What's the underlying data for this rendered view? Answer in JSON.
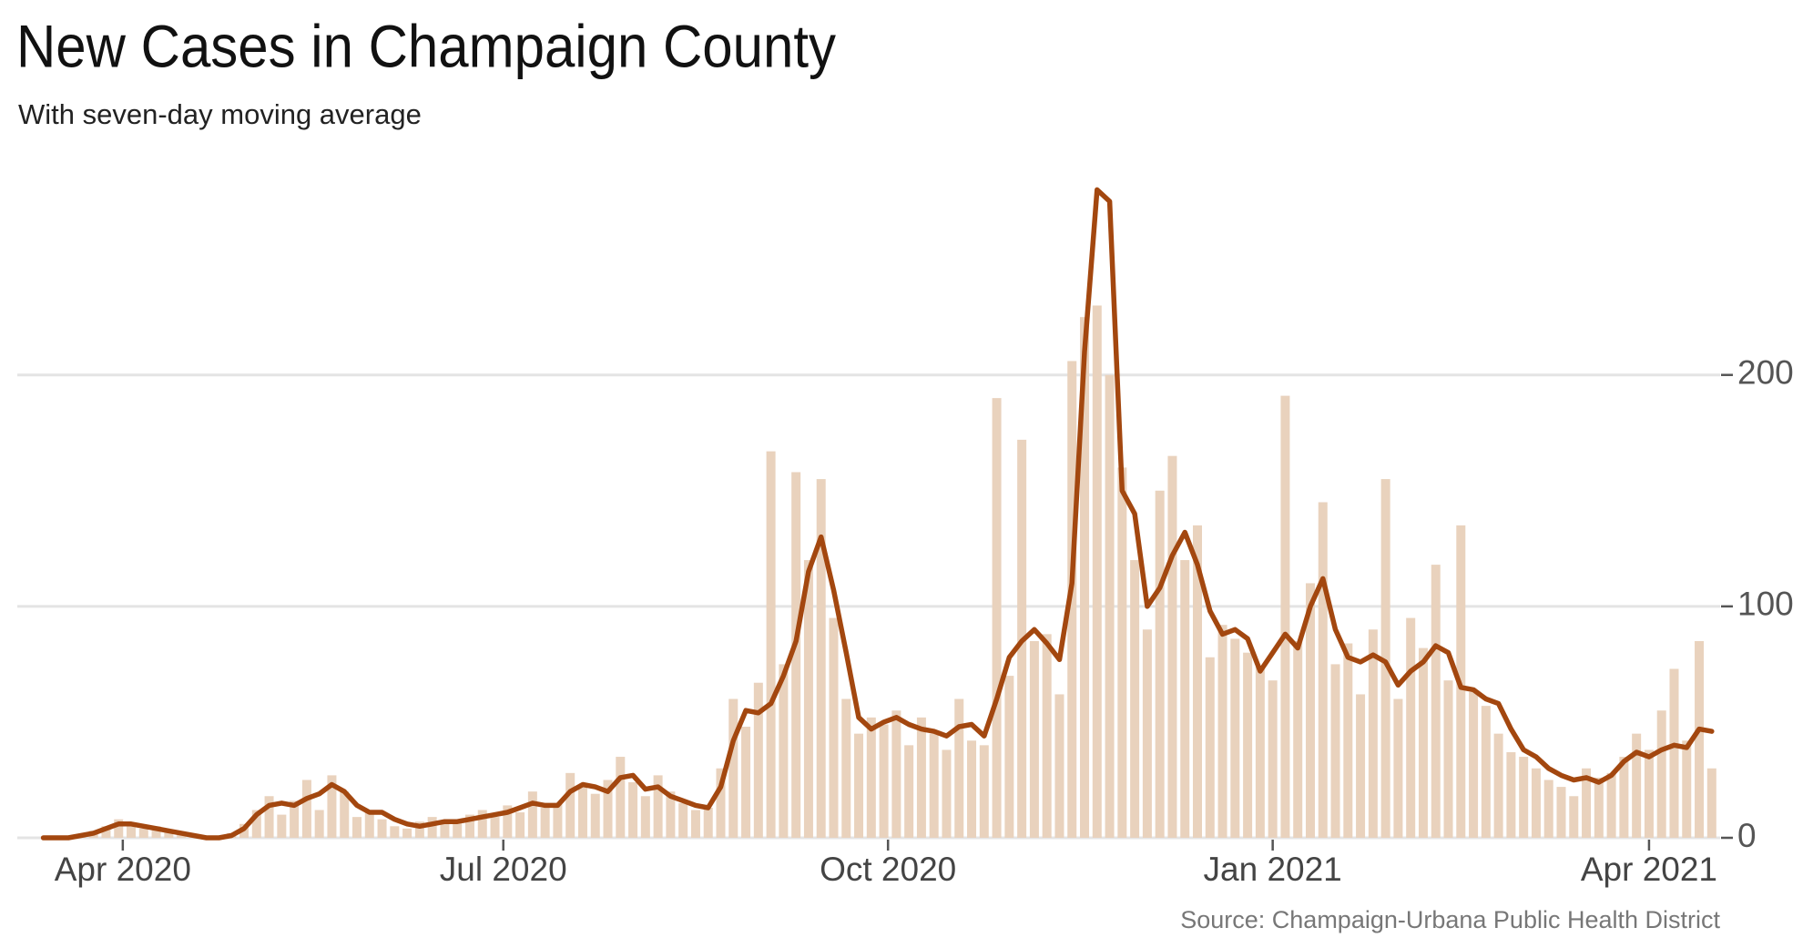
{
  "chart_data": {
    "type": "combo",
    "title": "New Cases in Champaign County",
    "subtitle": "With seven-day moving average",
    "source": "Source: Champaign-Urbana Public Health District",
    "x": [
      "2020-03-13",
      "2020-03-16",
      "2020-03-19",
      "2020-03-22",
      "2020-03-25",
      "2020-03-28",
      "2020-03-31",
      "2020-04-03",
      "2020-04-06",
      "2020-04-09",
      "2020-04-12",
      "2020-04-15",
      "2020-04-18",
      "2020-04-21",
      "2020-04-24",
      "2020-04-27",
      "2020-04-30",
      "2020-05-03",
      "2020-05-06",
      "2020-05-09",
      "2020-05-12",
      "2020-05-15",
      "2020-05-18",
      "2020-05-21",
      "2020-05-24",
      "2020-05-27",
      "2020-05-30",
      "2020-06-02",
      "2020-06-05",
      "2020-06-08",
      "2020-06-11",
      "2020-06-14",
      "2020-06-17",
      "2020-06-20",
      "2020-06-23",
      "2020-06-26",
      "2020-06-29",
      "2020-07-02",
      "2020-07-05",
      "2020-07-08",
      "2020-07-11",
      "2020-07-14",
      "2020-07-17",
      "2020-07-20",
      "2020-07-23",
      "2020-07-26",
      "2020-07-29",
      "2020-08-01",
      "2020-08-04",
      "2020-08-07",
      "2020-08-10",
      "2020-08-13",
      "2020-08-16",
      "2020-08-19",
      "2020-08-22",
      "2020-08-25",
      "2020-08-28",
      "2020-08-31",
      "2020-09-03",
      "2020-09-06",
      "2020-09-09",
      "2020-09-12",
      "2020-09-15",
      "2020-09-18",
      "2020-09-21",
      "2020-09-24",
      "2020-09-27",
      "2020-09-30",
      "2020-10-03",
      "2020-10-06",
      "2020-10-09",
      "2020-10-12",
      "2020-10-15",
      "2020-10-18",
      "2020-10-21",
      "2020-10-24",
      "2020-10-27",
      "2020-10-30",
      "2020-11-02",
      "2020-11-05",
      "2020-11-08",
      "2020-11-11",
      "2020-11-14",
      "2020-11-17",
      "2020-11-20",
      "2020-11-23",
      "2020-11-26",
      "2020-11-29",
      "2020-12-02",
      "2020-12-05",
      "2020-12-08",
      "2020-12-11",
      "2020-12-14",
      "2020-12-17",
      "2020-12-20",
      "2020-12-23",
      "2020-12-26",
      "2020-12-29",
      "2021-01-01",
      "2021-01-04",
      "2021-01-07",
      "2021-01-10",
      "2021-01-13",
      "2021-01-16",
      "2021-01-19",
      "2021-01-22",
      "2021-01-25",
      "2021-01-28",
      "2021-01-31",
      "2021-02-03",
      "2021-02-06",
      "2021-02-09",
      "2021-02-12",
      "2021-02-15",
      "2021-02-18",
      "2021-02-21",
      "2021-02-24",
      "2021-02-27",
      "2021-03-02",
      "2021-03-05",
      "2021-03-08",
      "2021-03-11",
      "2021-03-14",
      "2021-03-17",
      "2021-03-20",
      "2021-03-23",
      "2021-03-26",
      "2021-03-29",
      "2021-04-01",
      "2021-04-04",
      "2021-04-07",
      "2021-04-10",
      "2021-04-13",
      "2021-04-16"
    ],
    "series": [
      {
        "type": "bar",
        "color": "#e9d2bd",
        "values": [
          0,
          0,
          1,
          1,
          3,
          5,
          8,
          6,
          4,
          5,
          3,
          2,
          1,
          0,
          1,
          2,
          6,
          12,
          18,
          10,
          16,
          25,
          12,
          27,
          20,
          9,
          12,
          8,
          5,
          4,
          7,
          9,
          6,
          8,
          10,
          12,
          9,
          14,
          11,
          20,
          13,
          15,
          28,
          22,
          19,
          25,
          35,
          24,
          18,
          27,
          20,
          15,
          12,
          13,
          30,
          60,
          48,
          67,
          167,
          75,
          158,
          120,
          155,
          95,
          60,
          45,
          52,
          49,
          55,
          40,
          52,
          45,
          38,
          60,
          42,
          40,
          190,
          70,
          172,
          85,
          88,
          62,
          206,
          225,
          230,
          200,
          160,
          120,
          90,
          150,
          165,
          120,
          135,
          78,
          92,
          86,
          80,
          74,
          68,
          191,
          85,
          110,
          145,
          75,
          84,
          62,
          90,
          155,
          60,
          95,
          82,
          118,
          68,
          135,
          63,
          57,
          45,
          37,
          35,
          30,
          25,
          22,
          18,
          30,
          26,
          28,
          35,
          45,
          38,
          55,
          73,
          42,
          85,
          30
        ]
      },
      {
        "type": "line",
        "color": "#a3470f",
        "values": [
          0,
          0,
          0,
          1,
          2,
          4,
          6,
          6,
          5,
          4,
          3,
          2,
          1,
          0,
          0,
          1,
          4,
          10,
          14,
          15,
          14,
          17,
          19,
          23,
          20,
          14,
          11,
          11,
          8,
          6,
          5,
          6,
          7,
          7,
          8,
          9,
          10,
          11,
          13,
          15,
          14,
          14,
          20,
          23,
          22,
          20,
          26,
          27,
          21,
          22,
          18,
          16,
          14,
          13,
          22,
          42,
          55,
          54,
          58,
          70,
          85,
          115,
          130,
          107,
          80,
          52,
          47,
          50,
          52,
          49,
          47,
          46,
          44,
          48,
          49,
          44,
          60,
          78,
          85,
          90,
          84,
          77,
          110,
          210,
          280,
          275,
          150,
          140,
          100,
          108,
          122,
          132,
          118,
          98,
          88,
          90,
          86,
          72,
          80,
          88,
          82,
          100,
          112,
          90,
          78,
          76,
          79,
          76,
          66,
          72,
          76,
          83,
          80,
          65,
          64,
          60,
          58,
          47,
          38,
          35,
          30,
          27,
          25,
          26,
          24,
          27,
          33,
          37,
          35,
          38,
          40,
          39,
          47,
          46
        ]
      }
    ],
    "xlim": [
      "2020-03-12",
      "2021-04-18"
    ],
    "xticks": [
      {
        "value": "2020-04-01",
        "label": "Apr 2020"
      },
      {
        "value": "2020-07-01",
        "label": "Jul 2020"
      },
      {
        "value": "2020-10-01",
        "label": "Oct 2020"
      },
      {
        "value": "2021-01-01",
        "label": "Jan 2021"
      },
      {
        "value": "2021-04-01",
        "label": "Apr 2021"
      }
    ],
    "ylim": [
      0,
      290
    ],
    "yticks": [
      0,
      100,
      200
    ],
    "grid": true
  }
}
